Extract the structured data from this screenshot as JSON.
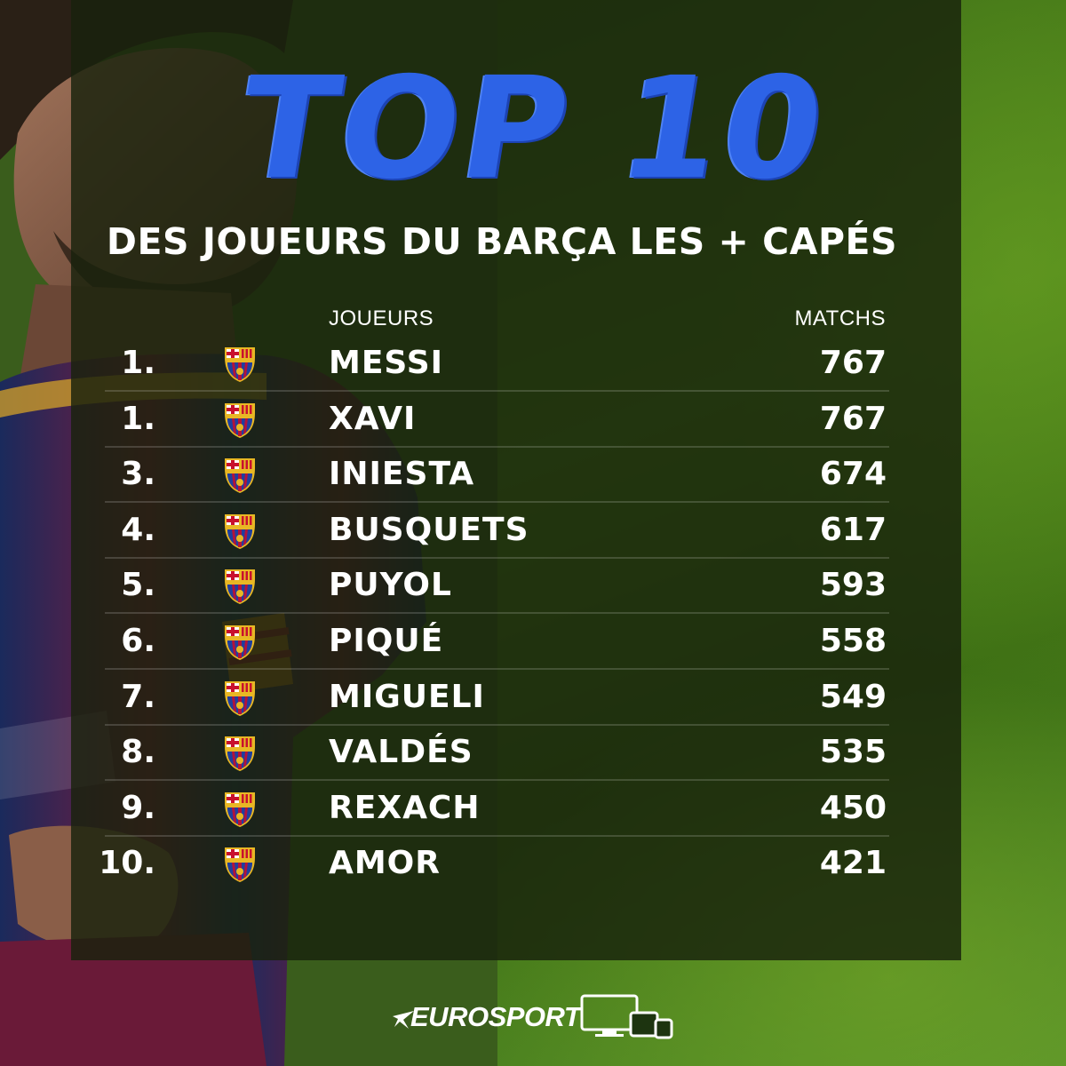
{
  "title": "TOP 10",
  "subtitle": "DES JOUEURS DU BARÇA LES + CAPÉS",
  "table": {
    "headers": {
      "players": "JOUEURS",
      "matches": "MATCHS"
    },
    "rows": [
      {
        "rank": "1.",
        "player": "MESSI",
        "matches": "767",
        "crest": "fc-barcelona-crest-icon"
      },
      {
        "rank": "1.",
        "player": "XAVI",
        "matches": "767",
        "crest": "fc-barcelona-crest-icon"
      },
      {
        "rank": "3.",
        "player": "INIESTA",
        "matches": "674",
        "crest": "fc-barcelona-crest-icon"
      },
      {
        "rank": "4.",
        "player": "BUSQUETS",
        "matches": "617",
        "crest": "fc-barcelona-crest-icon"
      },
      {
        "rank": "5.",
        "player": "PUYOL",
        "matches": "593",
        "crest": "fc-barcelona-crest-icon"
      },
      {
        "rank": "6.",
        "player": "PIQUÉ",
        "matches": "558",
        "crest": "fc-barcelona-crest-icon"
      },
      {
        "rank": "7.",
        "player": "MIGUELI",
        "matches": "549",
        "crest": "fc-barcelona-crest-icon"
      },
      {
        "rank": "8.",
        "player": "VALDÉS",
        "matches": "535",
        "crest": "fc-barcelona-crest-icon"
      },
      {
        "rank": "9.",
        "player": "REXACH",
        "matches": "450",
        "crest": "fc-barcelona-crest-icon"
      },
      {
        "rank": "10.",
        "player": "AMOR",
        "matches": "421",
        "crest": "fc-barcelona-crest-icon"
      }
    ]
  },
  "brand": {
    "name": "EUROSPORT",
    "devices_icon": "multi-device-icon"
  },
  "colors": {
    "title_blue": "#2d63e6",
    "panel": "#18220c",
    "grass": "#4f8a1c",
    "crest_blue": "#1f3f9e",
    "crest_red": "#b3123a",
    "crest_gold": "#e8b724"
  }
}
